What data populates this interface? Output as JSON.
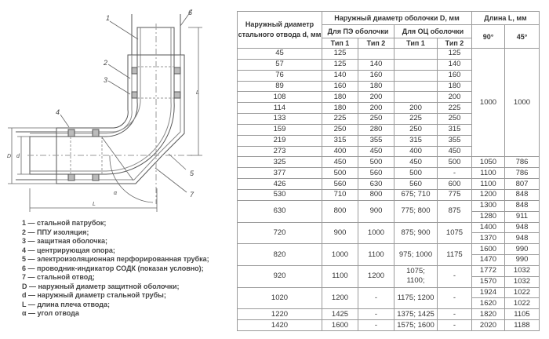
{
  "drawing": {
    "callouts": [
      "1",
      "2",
      "3",
      "4",
      "5",
      "6",
      "7"
    ],
    "dimension_labels": {
      "D": "D",
      "d": "d",
      "L_vertical": "L",
      "L_horizontal": "L",
      "alpha": "α"
    }
  },
  "legend": [
    "1 — стальной патрубок;",
    "2 — ППУ изоляция;",
    "3 — защитная оболочка;",
    "4 — центрирующая опора;",
    "5 — электроизоляционная перфорированная трубка;",
    "6 — проводник-индикатор СОДК (показан условно);",
    "7 — стальной отвод;",
    "D — наружный диаметр защитной оболочки;",
    "d — наружный диаметр стальной трубы;",
    "L — длина плеча отвода;",
    "α — угол отвода"
  ],
  "table": {
    "headers": {
      "d": "Наружный диаметр стального отвода d, мм",
      "D": "Наружный диаметр оболочки D, мм",
      "pe": "Для ПЭ оболочки",
      "oc": "Для ОЦ оболочки",
      "type1": "Тип 1",
      "type2": "Тип 2",
      "L": "Длина L, мм",
      "a90": "90°",
      "a45": "45°"
    },
    "shared_length_small": {
      "l90": "1000",
      "l45": "1000"
    },
    "rows": [
      {
        "d": "45",
        "pe1": "125",
        "pe2": "",
        "oc1": "",
        "oc2": "125"
      },
      {
        "d": "57",
        "pe1": "125",
        "pe2": "140",
        "oc1": "",
        "oc2": "140"
      },
      {
        "d": "76",
        "pe1": "140",
        "pe2": "160",
        "oc1": "",
        "oc2": "160"
      },
      {
        "d": "89",
        "pe1": "160",
        "pe2": "180",
        "oc1": "",
        "oc2": "180"
      },
      {
        "d": "108",
        "pe1": "180",
        "pe2": "200",
        "oc1": "",
        "oc2": "200"
      },
      {
        "d": "114",
        "pe1": "180",
        "pe2": "200",
        "oc1": "200",
        "oc2": "225"
      },
      {
        "d": "133",
        "pe1": "225",
        "pe2": "250",
        "oc1": "225",
        "oc2": "250"
      },
      {
        "d": "159",
        "pe1": "250",
        "pe2": "280",
        "oc1": "250",
        "oc2": "315"
      },
      {
        "d": "219",
        "pe1": "315",
        "pe2": "355",
        "oc1": "315",
        "oc2": "355"
      },
      {
        "d": "273",
        "pe1": "400",
        "pe2": "450",
        "oc1": "400",
        "oc2": "450"
      },
      {
        "d": "325",
        "pe1": "450",
        "pe2": "500",
        "oc1": "450",
        "oc2": "500",
        "l90": [
          "1050"
        ],
        "l45": [
          "786"
        ]
      },
      {
        "d": "377",
        "pe1": "500",
        "pe2": "560",
        "oc1": "500",
        "oc2": "-",
        "l90": [
          "1100"
        ],
        "l45": [
          "786"
        ]
      },
      {
        "d": "426",
        "pe1": "560",
        "pe2": "630",
        "oc1": "560",
        "oc2": "600",
        "l90": [
          "1100"
        ],
        "l45": [
          "807"
        ]
      },
      {
        "d": "530",
        "pe1": "710",
        "pe2": "800",
        "oc1": "675; 710",
        "oc2": "775",
        "l90": [
          "1200"
        ],
        "l45": [
          "848"
        ]
      },
      {
        "d": "630",
        "pe1": "800",
        "pe2": "900",
        "oc1": "775; 800",
        "oc2": "875",
        "l90": [
          "1300",
          "1280"
        ],
        "l45": [
          "848",
          "911"
        ]
      },
      {
        "d": "720",
        "pe1": "900",
        "pe2": "1000",
        "oc1": "875; 900",
        "oc2": "1075",
        "l90": [
          "1400",
          "1370"
        ],
        "l45": [
          "948",
          "948"
        ]
      },
      {
        "d": "820",
        "pe1": "1000",
        "pe2": "1100",
        "oc1": "975; 1000",
        "oc2": "1175",
        "l90": [
          "1600",
          "1470"
        ],
        "l45": [
          "990",
          "990"
        ]
      },
      {
        "d": "920",
        "pe1": "1100",
        "pe2": "1200",
        "oc1": "1075;\n1100;",
        "oc2": "-",
        "l90": [
          "1772",
          "1570"
        ],
        "l45": [
          "1032",
          "1032"
        ]
      },
      {
        "d": "1020",
        "pe1": "1200",
        "pe2": "-",
        "oc1": "1175; 1200",
        "oc2": "-",
        "l90": [
          "1924",
          "1620"
        ],
        "l45": [
          "1022",
          "1022"
        ]
      },
      {
        "d": "1220",
        "pe1": "1425",
        "pe2": "-",
        "oc1": "1375; 1425",
        "oc2": "-",
        "l90": [
          "1820"
        ],
        "l45": [
          "1105"
        ]
      },
      {
        "d": "1420",
        "pe1": "1600",
        "pe2": "-",
        "oc1": "1575; 1600",
        "oc2": "-",
        "l90": [
          "2020"
        ],
        "l45": [
          "1188"
        ]
      }
    ]
  },
  "colors": {
    "line": "#555555",
    "border": "#9a9a9a",
    "text": "#333333"
  }
}
